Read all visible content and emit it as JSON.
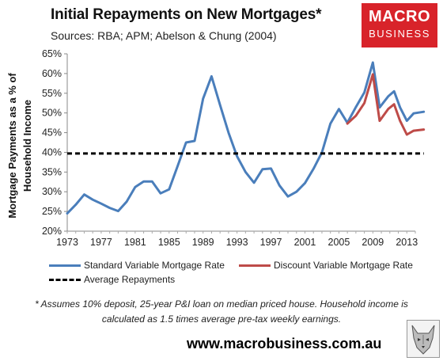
{
  "header": {
    "title": "Initial Repayments on New Mortgages*",
    "sources": "Sources: RBA; APM; Abelson & Chung (2004)"
  },
  "logo": {
    "line1": "MACRO",
    "line2": "BUSINESS",
    "icon": "wolf-head-icon"
  },
  "footnote": "* Assumes 10% deposit, 25-year P&I loan on median priced house. Household income is calculated as 1.5 times average pre-tax weekly earnings.",
  "website": "www.macrobusiness.com.au",
  "colors": {
    "standard": "#4a7ebb",
    "discount": "#be4b48",
    "average": "#000000"
  },
  "chart_data": {
    "type": "line",
    "title": "Initial Repayments on New Mortgages*",
    "xlabel": "",
    "ylabel": "Mortgage Payments as a % of Household Income",
    "ylim": [
      20,
      65
    ],
    "xlim": [
      1973,
      2014
    ],
    "x_ticks": [
      1973,
      1977,
      1981,
      1985,
      1989,
      1993,
      1997,
      2001,
      2005,
      2009,
      2013
    ],
    "y_ticks": [
      "20%",
      "25%",
      "30%",
      "35%",
      "40%",
      "45%",
      "50%",
      "55%",
      "60%",
      "65%"
    ],
    "grid": false,
    "legend_position": "bottom",
    "series": [
      {
        "name": "Standard Variable Mortgage Rate",
        "style": "solid",
        "points": [
          [
            1973,
            24.5
          ],
          [
            1974,
            26.7
          ],
          [
            1975,
            29.3
          ],
          [
            1976,
            28.0
          ],
          [
            1977,
            27.0
          ],
          [
            1978,
            25.9
          ],
          [
            1979,
            25.1
          ],
          [
            1980,
            27.5
          ],
          [
            1981,
            31.2
          ],
          [
            1982,
            32.6
          ],
          [
            1983,
            32.6
          ],
          [
            1984,
            29.6
          ],
          [
            1985,
            30.6
          ],
          [
            1986,
            36.5
          ],
          [
            1987,
            42.5
          ],
          [
            1988,
            42.9
          ],
          [
            1989,
            53.6
          ],
          [
            1990,
            59.3
          ],
          [
            1991,
            52.0
          ],
          [
            1992,
            45.0
          ],
          [
            1993,
            39.0
          ],
          [
            1994,
            35.0
          ],
          [
            1995,
            32.3
          ],
          [
            1996,
            35.7
          ],
          [
            1997,
            35.9
          ],
          [
            1998,
            31.6
          ],
          [
            1999,
            28.8
          ],
          [
            2000,
            30.0
          ],
          [
            2001,
            32.2
          ],
          [
            2002,
            35.8
          ],
          [
            2003,
            40.0
          ],
          [
            2004,
            47.3
          ],
          [
            2005,
            51.0
          ],
          [
            2006,
            47.5
          ],
          [
            2007,
            51.5
          ],
          [
            2008,
            55.2
          ],
          [
            2009,
            62.8
          ],
          [
            2009.8,
            51.4
          ],
          [
            2010.8,
            54.2
          ],
          [
            2011.5,
            55.5
          ],
          [
            2012.2,
            51.4
          ],
          [
            2013,
            48.0
          ],
          [
            2013.8,
            49.9
          ],
          [
            2015,
            50.3
          ]
        ]
      },
      {
        "name": "Discount Variable Mortgage Rate",
        "style": "solid",
        "points": [
          [
            2006,
            47.3
          ],
          [
            2007,
            49.3
          ],
          [
            2008,
            52.5
          ],
          [
            2009,
            59.8
          ],
          [
            2009.8,
            48.0
          ],
          [
            2010.8,
            51.0
          ],
          [
            2011.5,
            52.2
          ],
          [
            2012.2,
            48.0
          ],
          [
            2013,
            44.5
          ],
          [
            2013.8,
            45.5
          ],
          [
            2015,
            45.8
          ]
        ]
      },
      {
        "name": "Average Repayments",
        "style": "dashed",
        "points": [
          [
            1973,
            39.7
          ],
          [
            2015,
            39.7
          ]
        ]
      }
    ]
  }
}
